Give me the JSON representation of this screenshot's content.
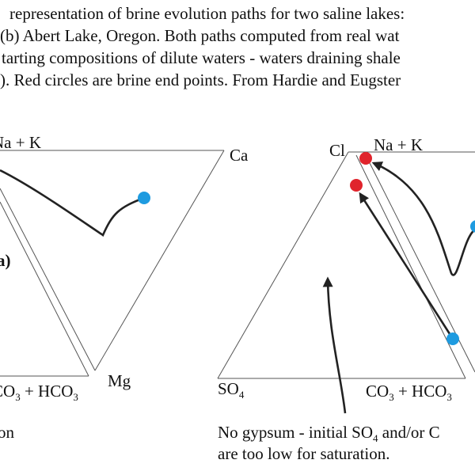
{
  "caption": {
    "lines": [
      "representation of brine evolution paths for two saline lakes:",
      "(b) Abert Lake, Oregon. Both paths computed from real wat",
      "tarting compositions of dilute waters - waters draining shale",
      "). Red circles are brine end points. From Hardie and Eugster"
    ]
  },
  "left_diagram": {
    "labels": {
      "na_k": "Na + K",
      "ca": "Ca",
      "panel": "a)",
      "mg": "Mg",
      "co3_hco3": [
        "CO",
        "3",
        " + HCO",
        "3"
      ],
      "bottom_text": "on"
    }
  },
  "right_diagram": {
    "labels": {
      "cl": "Cl",
      "na_k": "Na + K",
      "so4": [
        "SO",
        "4"
      ],
      "co3_hco3": [
        "CO",
        "3",
        " + HCO",
        "3"
      ]
    },
    "annotation": [
      [
        "No gypsum - initial SO",
        "4",
        " and/or C"
      ],
      [
        "are too low for saturation."
      ]
    ]
  }
}
